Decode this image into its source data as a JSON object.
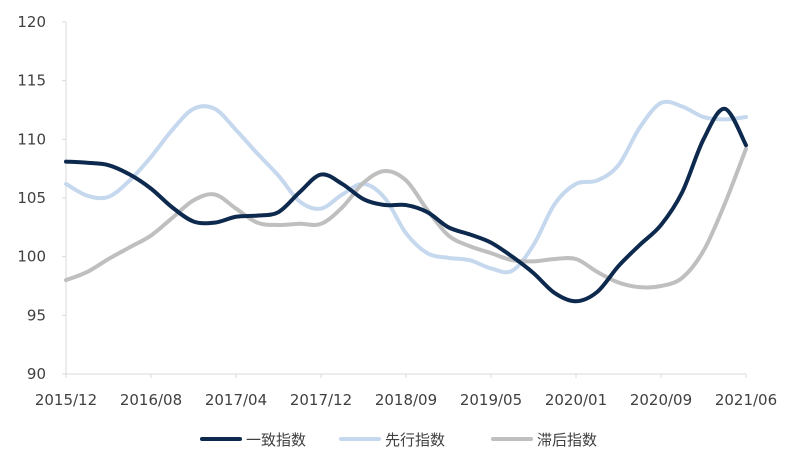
{
  "chart_data": {
    "type": "line",
    "title": "",
    "xlabel": "",
    "ylabel": "",
    "ylim": [
      90,
      120
    ],
    "yticks": [
      90,
      95,
      100,
      105,
      110,
      115,
      120
    ],
    "xticks": [
      "2015/12",
      "2016/08",
      "2017/04",
      "2017/12",
      "2018/09",
      "2019/05",
      "2020/01",
      "2020/09",
      "2021/06"
    ],
    "grid": false,
    "legend_position": "bottom",
    "series": [
      {
        "name": "一致指数",
        "color": "#0d2a4e",
        "points": [
          [
            0,
            108.1
          ],
          [
            0.25,
            108.0
          ],
          [
            0.5,
            107.8
          ],
          [
            0.75,
            107.0
          ],
          [
            1.0,
            105.8
          ],
          [
            1.25,
            104.2
          ],
          [
            1.5,
            103.0
          ],
          [
            1.75,
            102.9
          ],
          [
            2.0,
            103.4
          ],
          [
            2.25,
            103.5
          ],
          [
            2.5,
            103.8
          ],
          [
            2.75,
            105.5
          ],
          [
            3.0,
            107.0
          ],
          [
            3.25,
            106.2
          ],
          [
            3.5,
            104.9
          ],
          [
            3.75,
            104.4
          ],
          [
            4.0,
            104.4
          ],
          [
            4.25,
            103.8
          ],
          [
            4.5,
            102.5
          ],
          [
            4.75,
            101.9
          ],
          [
            5.0,
            101.2
          ],
          [
            5.25,
            100.0
          ],
          [
            5.5,
            98.6
          ],
          [
            5.75,
            96.9
          ],
          [
            6.0,
            96.2
          ],
          [
            6.25,
            97.0
          ],
          [
            6.5,
            99.2
          ],
          [
            6.75,
            101.0
          ],
          [
            7.0,
            102.7
          ],
          [
            7.25,
            105.5
          ],
          [
            7.5,
            110.0
          ],
          [
            7.75,
            112.6
          ],
          [
            8.0,
            109.5
          ]
        ]
      },
      {
        "name": "先行指数",
        "color": "#c5d8ee",
        "points": [
          [
            0,
            106.2
          ],
          [
            0.25,
            105.2
          ],
          [
            0.5,
            105.1
          ],
          [
            0.75,
            106.5
          ],
          [
            1.0,
            108.5
          ],
          [
            1.25,
            110.8
          ],
          [
            1.5,
            112.6
          ],
          [
            1.75,
            112.6
          ],
          [
            2.0,
            110.8
          ],
          [
            2.25,
            108.8
          ],
          [
            2.5,
            106.9
          ],
          [
            2.75,
            104.7
          ],
          [
            3.0,
            104.1
          ],
          [
            3.25,
            105.3
          ],
          [
            3.5,
            106.2
          ],
          [
            3.75,
            105.0
          ],
          [
            4.0,
            102.0
          ],
          [
            4.25,
            100.3
          ],
          [
            4.5,
            99.9
          ],
          [
            4.75,
            99.7
          ],
          [
            5.0,
            99.0
          ],
          [
            5.25,
            98.8
          ],
          [
            5.5,
            101.0
          ],
          [
            5.75,
            104.5
          ],
          [
            6.0,
            106.2
          ],
          [
            6.25,
            106.5
          ],
          [
            6.5,
            107.8
          ],
          [
            6.75,
            111.0
          ],
          [
            7.0,
            113.1
          ],
          [
            7.25,
            112.8
          ],
          [
            7.5,
            111.9
          ],
          [
            7.75,
            111.7
          ],
          [
            8.0,
            111.9
          ]
        ]
      },
      {
        "name": "滞后指数",
        "color": "#bfbfbf",
        "points": [
          [
            0,
            98.0
          ],
          [
            0.25,
            98.7
          ],
          [
            0.5,
            99.8
          ],
          [
            0.75,
            100.8
          ],
          [
            1.0,
            101.8
          ],
          [
            1.25,
            103.3
          ],
          [
            1.5,
            104.8
          ],
          [
            1.75,
            105.3
          ],
          [
            2.0,
            104.1
          ],
          [
            2.25,
            102.9
          ],
          [
            2.5,
            102.7
          ],
          [
            2.75,
            102.8
          ],
          [
            3.0,
            102.8
          ],
          [
            3.25,
            104.2
          ],
          [
            3.5,
            106.3
          ],
          [
            3.75,
            107.3
          ],
          [
            4.0,
            106.5
          ],
          [
            4.25,
            104.0
          ],
          [
            4.5,
            101.8
          ],
          [
            4.75,
            100.9
          ],
          [
            5.0,
            100.3
          ],
          [
            5.25,
            99.7
          ],
          [
            5.5,
            99.6
          ],
          [
            5.75,
            99.8
          ],
          [
            6.0,
            99.8
          ],
          [
            6.25,
            98.7
          ],
          [
            6.5,
            97.8
          ],
          [
            6.75,
            97.4
          ],
          [
            7.0,
            97.5
          ],
          [
            7.25,
            98.2
          ],
          [
            7.5,
            100.5
          ],
          [
            7.75,
            104.5
          ],
          [
            8.0,
            109.2
          ]
        ]
      }
    ]
  }
}
